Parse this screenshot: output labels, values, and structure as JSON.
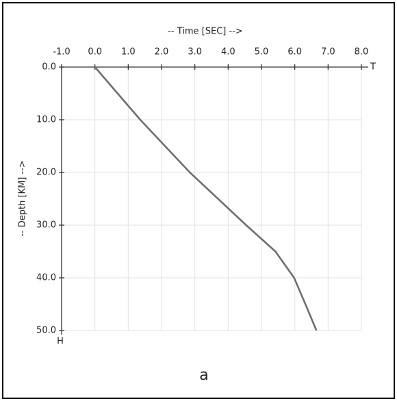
{
  "chart_data": {
    "type": "line",
    "xlabel": "-- Time [SEC] -->",
    "ylabel": "-- Depth [KM] -->",
    "x_axis_end_label": "T",
    "y_axis_end_label": "H",
    "caption": "a",
    "x": [
      0,
      0.68,
      1.36,
      2.85,
      4.54,
      5.42,
      5.98,
      6.32,
      6.65
    ],
    "values": [
      0,
      5,
      10,
      20,
      30,
      35,
      40,
      45,
      50
    ],
    "color": "#6e6e6e",
    "xlim": [
      -1,
      8
    ],
    "ylim": [
      0,
      50
    ],
    "y_inverted": true,
    "x_axis_position": "top",
    "xticks": [
      {
        "value": -1,
        "label": "-1.0"
      },
      {
        "value": 0,
        "label": "0.0"
      },
      {
        "value": 1,
        "label": "1.0"
      },
      {
        "value": 2,
        "label": "2.0"
      },
      {
        "value": 3,
        "label": "3.0"
      },
      {
        "value": 4,
        "label": "4.0"
      },
      {
        "value": 5,
        "label": "5.0"
      },
      {
        "value": 6,
        "label": "6.0"
      },
      {
        "value": 7,
        "label": "7.0"
      },
      {
        "value": 8,
        "label": "8.0"
      }
    ],
    "yticks": [
      {
        "value": 0,
        "label": "0.0"
      },
      {
        "value": 10,
        "label": "10.0"
      },
      {
        "value": 20,
        "label": "20.0"
      },
      {
        "value": 30,
        "label": "30.0"
      },
      {
        "value": 40,
        "label": "40.0"
      },
      {
        "value": 50,
        "label": "50.0"
      }
    ],
    "grid": true
  }
}
